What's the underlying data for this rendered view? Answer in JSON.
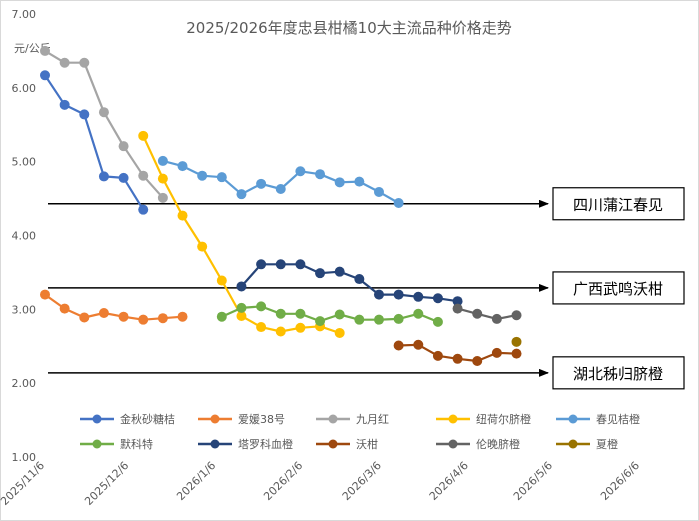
{
  "chart_data": {
    "type": "line",
    "title": "2025/2026年度忠县柑橘10大主流品种价格走势",
    "ylabel": "元/公斤",
    "ylim": [
      1.0,
      7.0
    ],
    "y_ticks": [
      "1.00",
      "2.00",
      "3.00",
      "4.00",
      "5.00",
      "6.00",
      "7.00"
    ],
    "xlim": [
      "2025/11/6",
      "2026/6/6"
    ],
    "x_ticks": [
      {
        "date": "2025/11/6",
        "label": "2025/11/6"
      },
      {
        "date": "2025/12/6",
        "label": "2025/12/6"
      },
      {
        "date": "2026/1/6",
        "label": "2026/1/6"
      },
      {
        "date": "2026/2/6",
        "label": "2026/2/6"
      },
      {
        "date": "2026/3/6",
        "label": "2026/3/6"
      },
      {
        "date": "2026/4/6",
        "label": "2026/4/6"
      },
      {
        "date": "2026/5/6",
        "label": "2026/5/6"
      },
      {
        "date": "2026/6/6",
        "label": "2026/6/6"
      }
    ],
    "grid": false,
    "legend_position": "bottom",
    "series": [
      {
        "name": "金秋砂糖桔",
        "color": "#4472C4",
        "points": [
          [
            "2025/11/6",
            6.17
          ],
          [
            "2025/11/13",
            5.77
          ],
          [
            "2025/11/20",
            5.64
          ],
          [
            "2025/11/27",
            4.8
          ],
          [
            "2025/12/4",
            4.78
          ],
          [
            "2025/12/11",
            4.35
          ]
        ]
      },
      {
        "name": "爱媛38号",
        "color": "#ED7D31",
        "points": [
          [
            "2025/11/6",
            3.2
          ],
          [
            "2025/11/13",
            3.01
          ],
          [
            "2025/11/20",
            2.89
          ],
          [
            "2025/11/27",
            2.95
          ],
          [
            "2025/12/4",
            2.9
          ],
          [
            "2025/12/11",
            2.86
          ],
          [
            "2025/12/18",
            2.88
          ],
          [
            "2025/12/25",
            2.9
          ]
        ]
      },
      {
        "name": "九月红",
        "color": "#A5A5A5",
        "points": [
          [
            "2025/11/6",
            6.5
          ],
          [
            "2025/11/13",
            6.34
          ],
          [
            "2025/11/20",
            6.34
          ],
          [
            "2025/11/27",
            5.67
          ],
          [
            "2025/12/4",
            5.21
          ],
          [
            "2025/12/11",
            4.81
          ],
          [
            "2025/12/18",
            4.51
          ]
        ]
      },
      {
        "name": "纽荷尔脐橙",
        "color": "#FFC000",
        "points": [
          [
            "2025/12/11",
            5.35
          ],
          [
            "2025/12/18",
            4.77
          ],
          [
            "2025/12/25",
            4.27
          ],
          [
            "2026/1/1",
            3.85
          ],
          [
            "2026/1/8",
            3.39
          ],
          [
            "2026/1/15",
            2.91
          ],
          [
            "2026/1/22",
            2.76
          ],
          [
            "2026/1/29",
            2.7
          ],
          [
            "2026/2/5",
            2.75
          ],
          [
            "2026/2/12",
            2.77
          ],
          [
            "2026/2/19",
            2.68
          ]
        ]
      },
      {
        "name": "春见桔橙",
        "color": "#5B9BD5",
        "points": [
          [
            "2025/12/18",
            5.01
          ],
          [
            "2025/12/25",
            4.94
          ],
          [
            "2026/1/1",
            4.81
          ],
          [
            "2026/1/8",
            4.79
          ],
          [
            "2026/1/15",
            4.56
          ],
          [
            "2026/1/22",
            4.7
          ],
          [
            "2026/1/29",
            4.63
          ],
          [
            "2026/2/5",
            4.87
          ],
          [
            "2026/2/12",
            4.83
          ],
          [
            "2026/2/19",
            4.72
          ],
          [
            "2026/2/26",
            4.73
          ],
          [
            "2026/3/5",
            4.59
          ],
          [
            "2026/3/12",
            4.44
          ]
        ]
      },
      {
        "name": "默科特",
        "color": "#70AD47",
        "points": [
          [
            "2026/1/8",
            2.9
          ],
          [
            "2026/1/15",
            3.02
          ],
          [
            "2026/1/22",
            3.04
          ],
          [
            "2026/1/29",
            2.94
          ],
          [
            "2026/2/5",
            2.94
          ],
          [
            "2026/2/12",
            2.84
          ],
          [
            "2026/2/19",
            2.93
          ],
          [
            "2026/2/26",
            2.86
          ],
          [
            "2026/3/5",
            2.86
          ],
          [
            "2026/3/12",
            2.87
          ],
          [
            "2026/3/19",
            2.94
          ],
          [
            "2026/3/26",
            2.83
          ]
        ]
      },
      {
        "name": "塔罗科血橙",
        "color": "#264478",
        "points": [
          [
            "2026/1/15",
            3.31
          ],
          [
            "2026/1/22",
            3.61
          ],
          [
            "2026/1/29",
            3.61
          ],
          [
            "2026/2/5",
            3.61
          ],
          [
            "2026/2/12",
            3.49
          ],
          [
            "2026/2/19",
            3.51
          ],
          [
            "2026/2/26",
            3.41
          ],
          [
            "2026/3/5",
            3.2
          ],
          [
            "2026/3/12",
            3.2
          ],
          [
            "2026/3/19",
            3.17
          ],
          [
            "2026/3/26",
            3.15
          ],
          [
            "2026/4/2",
            3.11
          ]
        ]
      },
      {
        "name": "沃柑",
        "color": "#9E480E",
        "points": [
          [
            "2026/3/12",
            2.51
          ],
          [
            "2026/3/19",
            2.52
          ],
          [
            "2026/3/26",
            2.37
          ],
          [
            "2026/4/2",
            2.33
          ],
          [
            "2026/4/9",
            2.3
          ],
          [
            "2026/4/16",
            2.41
          ],
          [
            "2026/4/23",
            2.4
          ]
        ]
      },
      {
        "name": "伦晚脐橙",
        "color": "#636363",
        "points": [
          [
            "2026/4/2",
            3.01
          ],
          [
            "2026/4/9",
            2.94
          ],
          [
            "2026/4/16",
            2.87
          ],
          [
            "2026/4/23",
            2.92
          ]
        ]
      },
      {
        "name": "夏橙",
        "color": "#997300",
        "points": [
          [
            "2026/4/23",
            2.56
          ]
        ]
      }
    ],
    "annotations": [
      {
        "label": "四川蒲江春见",
        "y": 4.43
      },
      {
        "label": "广西武鸣沃柑",
        "y": 3.29
      },
      {
        "label": "湖北秭归脐橙",
        "y": 2.14
      }
    ]
  }
}
